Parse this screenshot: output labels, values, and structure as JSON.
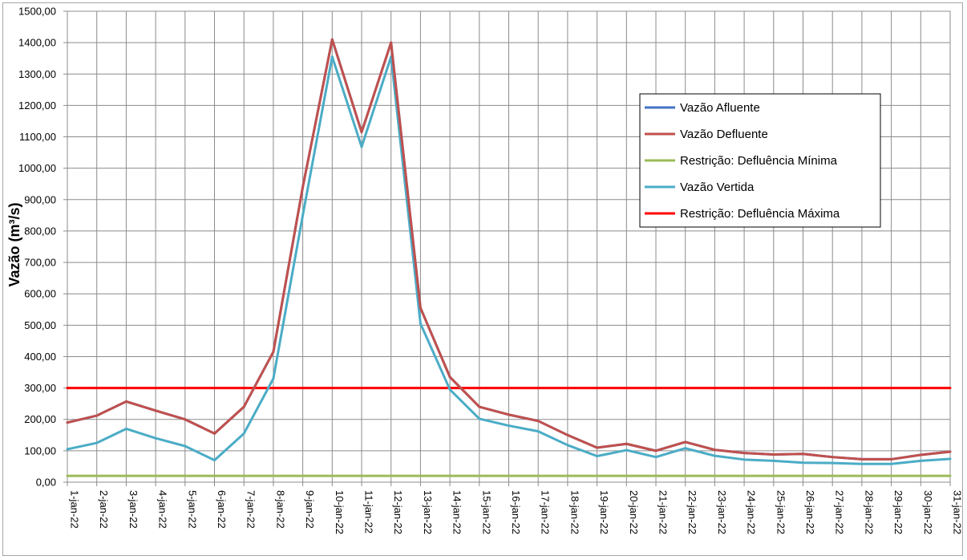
{
  "chart_data": {
    "type": "line",
    "title": "",
    "xlabel": "",
    "ylabel": "Vazão (m³/s)",
    "ylim": [
      0,
      1500
    ],
    "yticks": [
      "0,00",
      "100,00",
      "200,00",
      "300,00",
      "400,00",
      "500,00",
      "600,00",
      "700,00",
      "800,00",
      "900,00",
      "1000,00",
      "1100,00",
      "1200,00",
      "1300,00",
      "1400,00",
      "1500,00"
    ],
    "grid": true,
    "legend_position": "right",
    "categories": [
      "1-jan-22",
      "2-jan-22",
      "3-jan-22",
      "4-jan-22",
      "5-jan-22",
      "6-jan-22",
      "7-jan-22",
      "8-jan-22",
      "9-jan-22",
      "10-jan-22",
      "11-jan-22",
      "12-jan-22",
      "13-jan-22",
      "14-jan-22",
      "15-jan-22",
      "16-jan-22",
      "17-jan-22",
      "18-jan-22",
      "19-jan-22",
      "20-jan-22",
      "21-jan-22",
      "22-jan-22",
      "23-jan-22",
      "24-jan-22",
      "25-jan-22",
      "26-jan-22",
      "27-jan-22",
      "28-jan-22",
      "29-jan-22",
      "30-jan-22",
      "31-jan-22"
    ],
    "series": [
      {
        "name": "Vazão Afluente",
        "color": "#4472c4",
        "values": [
          190,
          212,
          257,
          228,
          200,
          155,
          240,
          415,
          940,
          1410,
          1115,
          1400,
          555,
          335,
          240,
          215,
          195,
          150,
          110,
          122,
          100,
          128,
          103,
          93,
          88,
          90,
          80,
          73,
          73,
          87,
          97
        ]
      },
      {
        "name": "Vazão Defluente",
        "color": "#c0504d",
        "values": [
          190,
          212,
          257,
          228,
          200,
          155,
          240,
          415,
          940,
          1410,
          1115,
          1400,
          555,
          335,
          240,
          215,
          195,
          150,
          110,
          122,
          100,
          128,
          103,
          93,
          88,
          90,
          80,
          73,
          73,
          87,
          97
        ]
      },
      {
        "name": "Restrição: Defluência Mínima",
        "color": "#9bbb59",
        "values": [
          20,
          20,
          20,
          20,
          20,
          20,
          20,
          20,
          20,
          20,
          20,
          20,
          20,
          20,
          20,
          20,
          20,
          20,
          20,
          20,
          20,
          20,
          20,
          20,
          20,
          20,
          20,
          20,
          20,
          20,
          20
        ]
      },
      {
        "name": "Vazão Vertida",
        "color": "#4bacc6",
        "values": [
          105,
          125,
          170,
          140,
          115,
          70,
          155,
          330,
          850,
          1355,
          1068,
          1355,
          505,
          295,
          202,
          180,
          162,
          118,
          83,
          102,
          80,
          108,
          84,
          72,
          68,
          62,
          61,
          58,
          58,
          68,
          74
        ]
      },
      {
        "name": "Restrição: Defluência Máxima",
        "color": "#ff0000",
        "values": [
          300,
          300,
          300,
          300,
          300,
          300,
          300,
          300,
          300,
          300,
          300,
          300,
          300,
          300,
          300,
          300,
          300,
          300,
          300,
          300,
          300,
          300,
          300,
          300,
          300,
          300,
          300,
          300,
          300,
          300,
          300
        ]
      }
    ]
  }
}
